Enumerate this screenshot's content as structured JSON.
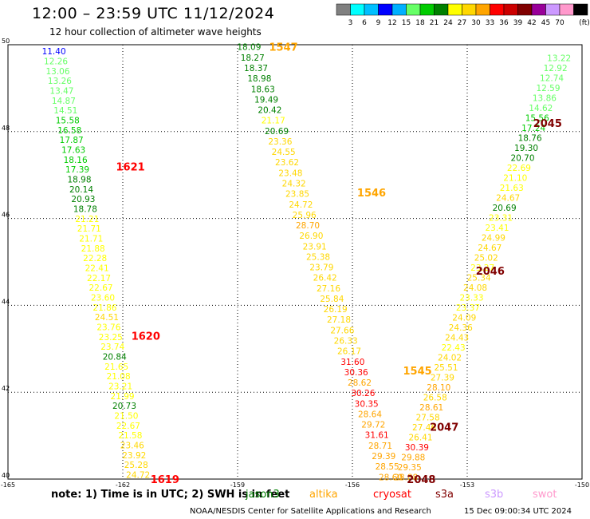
{
  "title": "12:00 – 23:59 UTC 11/12/2024",
  "subtitle": "12 hour collection of altimeter wave heights",
  "legend": {
    "bins": [
      "3",
      "6",
      "9",
      "12",
      "15",
      "18",
      "21",
      "24",
      "27",
      "30",
      "33",
      "36",
      "39",
      "42",
      "45",
      "70"
    ],
    "colors": [
      "#808080",
      "#00ffff",
      "#00bfff",
      "#0000ff",
      "#00b0ff",
      "#66ff66",
      "#00cc00",
      "#008000",
      "#ffff00",
      "#ffd700",
      "#ffa500",
      "#ff0000",
      "#cc0000",
      "#800000",
      "#990099",
      "#cc99ff",
      "#ff99cc",
      "#000000"
    ],
    "unit": "(ft)"
  },
  "note": {
    "prefix": "note:  1) Time is in UTC;  2) SWH is in feet"
  },
  "satellites": [
    {
      "name": "jason3",
      "color": "#008000"
    },
    {
      "name": "altika",
      "color": "#ffa500"
    },
    {
      "name": "cryosat",
      "color": "#ff0000"
    },
    {
      "name": "s3a",
      "color": "#800000"
    },
    {
      "name": "s3b",
      "color": "#cc99ff"
    },
    {
      "name": "swot",
      "color": "#ff99cc"
    }
  ],
  "footer": {
    "credit": "NOAA/NESDIS Center for Satellite Applications and Research",
    "timestamp": "15 Dec 09:00:34 UTC 2024"
  },
  "chart_data": {
    "type": "scatter",
    "title": "12:00 – 23:59 UTC 11/12/2024",
    "xlim": [
      -165,
      -150
    ],
    "ylim": [
      40,
      50
    ],
    "xticks": [
      "-165",
      "-162",
      "-159",
      "-156",
      "-153",
      "-150"
    ],
    "yticks": [
      "40",
      "42",
      "44",
      "46",
      "48",
      "50"
    ],
    "grid": true,
    "pass_labels": [
      {
        "text": "1547",
        "lon": -157.8,
        "lat": 49.95,
        "color": "#ffa500"
      },
      {
        "text": "1621",
        "lon": -161.8,
        "lat": 47.2,
        "color": "#ff0000"
      },
      {
        "text": "1546",
        "lon": -155.5,
        "lat": 46.6,
        "color": "#ffa500"
      },
      {
        "text": "1620",
        "lon": -161.4,
        "lat": 43.3,
        "color": "#ff0000"
      },
      {
        "text": "1545",
        "lon": -154.3,
        "lat": 42.5,
        "color": "#ffa500"
      },
      {
        "text": "1619",
        "lon": -160.9,
        "lat": 40.0,
        "color": "#ff0000"
      },
      {
        "text": "2045",
        "lon": -150.9,
        "lat": 48.2,
        "color": "#800000"
      },
      {
        "text": "2046",
        "lon": -152.4,
        "lat": 44.8,
        "color": "#800000"
      },
      {
        "text": "2047",
        "lon": -153.6,
        "lat": 41.2,
        "color": "#800000"
      },
      {
        "text": "2048",
        "lon": -154.2,
        "lat": 40.0,
        "color": "#800000"
      }
    ],
    "tracks": [
      {
        "start_lon": -163.8,
        "start_lat": 49.85,
        "end_lon": -161.6,
        "end_lat": 40.1,
        "values": [
          11.4,
          12.26,
          13.06,
          13.26,
          13.47,
          14.87,
          14.51,
          15.58,
          16.58,
          17.87,
          17.63,
          18.16,
          17.39,
          18.98,
          20.14,
          20.93,
          18.78,
          21.21,
          21.71,
          21.71,
          21.88,
          22.28,
          22.41,
          22.17,
          22.67,
          23.6,
          21.86,
          24.51,
          23.76,
          23.25,
          23.74,
          20.84,
          21.65,
          21.08,
          23.21,
          21.99,
          20.73,
          21.5,
          22.67,
          21.58,
          23.46,
          23.92,
          25.28,
          24.72
        ],
        "colors": [
          "#0000ff",
          "#66ff66",
          "#66ff66",
          "#66ff66",
          "#66ff66",
          "#66ff66",
          "#66ff66",
          "#00cc00",
          "#00cc00",
          "#00cc00",
          "#00cc00",
          "#00cc00",
          "#00cc00",
          "#008000",
          "#008000",
          "#008000",
          "#008000",
          "#ffff00",
          "#ffff00",
          "#ffff00",
          "#ffff00",
          "#ffff00",
          "#ffff00",
          "#ffff00",
          "#ffff00",
          "#ffff00",
          "#ffff00",
          "#ffd700",
          "#ffff00",
          "#ffff00",
          "#ffff00",
          "#008000",
          "#ffff00",
          "#ffff00",
          "#ffff00",
          "#ffff00",
          "#008000",
          "#ffff00",
          "#ffff00",
          "#ffff00",
          "#ffd700",
          "#ffd700",
          "#ffd700",
          "#ffd700"
        ]
      },
      {
        "start_lon": -158.7,
        "start_lat": 49.95,
        "end_lon": -155.0,
        "end_lat": 40.05,
        "values": [
          18.09,
          18.27,
          18.37,
          18.98,
          18.63,
          19.49,
          20.42,
          21.17,
          20.69,
          23.36,
          24.55,
          23.62,
          23.48,
          24.32,
          23.85,
          24.72,
          25.96,
          28.7,
          26.9,
          23.91,
          25.38,
          23.79,
          26.42,
          27.16,
          25.84,
          26.19,
          27.18,
          27.66,
          26.33,
          26.17,
          31.6,
          30.36,
          28.62,
          30.26,
          30.35,
          28.64,
          29.72,
          31.61,
          28.71,
          29.39,
          28.55,
          28.6
        ],
        "colors": [
          "#008000",
          "#008000",
          "#008000",
          "#008000",
          "#008000",
          "#008000",
          "#008000",
          "#ffff00",
          "#008000",
          "#ffd700",
          "#ffd700",
          "#ffd700",
          "#ffd700",
          "#ffd700",
          "#ffd700",
          "#ffd700",
          "#ffd700",
          "#ffa500",
          "#ffd700",
          "#ffd700",
          "#ffd700",
          "#ffd700",
          "#ffd700",
          "#ffd700",
          "#ffd700",
          "#ffd700",
          "#ffd700",
          "#ffd700",
          "#ffd700",
          "#ffd700",
          "#ff0000",
          "#ff0000",
          "#ffa500",
          "#ff0000",
          "#ff0000",
          "#ffa500",
          "#ffa500",
          "#ff0000",
          "#ffa500",
          "#ffa500",
          "#ffa500",
          "#ffa500"
        ]
      },
      {
        "start_lon": -150.6,
        "start_lat": 49.7,
        "end_lon": -154.6,
        "end_lat": 40.05,
        "values": [
          13.22,
          12.92,
          12.74,
          12.59,
          13.86,
          14.62,
          15.56,
          17.24,
          18.76,
          19.3,
          20.7,
          22.69,
          21.1,
          21.63,
          24.67,
          20.69,
          23.31,
          23.41,
          24.99,
          24.67,
          25.02,
          23.27,
          25.34,
          24.08,
          23.33,
          23.37,
          24.09,
          24.36,
          24.43,
          22.43,
          24.02,
          25.51,
          27.39,
          28.1,
          26.58,
          28.61,
          27.58,
          27.46,
          26.41,
          30.39,
          29.88,
          29.35,
          28.88
        ],
        "colors": [
          "#66ff66",
          "#66ff66",
          "#66ff66",
          "#66ff66",
          "#66ff66",
          "#66ff66",
          "#00cc00",
          "#00cc00",
          "#008000",
          "#008000",
          "#008000",
          "#ffff00",
          "#ffff00",
          "#ffff00",
          "#ffd700",
          "#008000",
          "#ffff00",
          "#ffff00",
          "#ffd700",
          "#ffd700",
          "#ffd700",
          "#ffff00",
          "#ffd700",
          "#ffd700",
          "#ffff00",
          "#ffff00",
          "#ffd700",
          "#ffd700",
          "#ffd700",
          "#ffff00",
          "#ffd700",
          "#ffd700",
          "#ffd700",
          "#ffa500",
          "#ffd700",
          "#ffa500",
          "#ffd700",
          "#ffd700",
          "#ffd700",
          "#ff0000",
          "#ffa500",
          "#ffa500",
          "#ffa500"
        ]
      }
    ]
  }
}
